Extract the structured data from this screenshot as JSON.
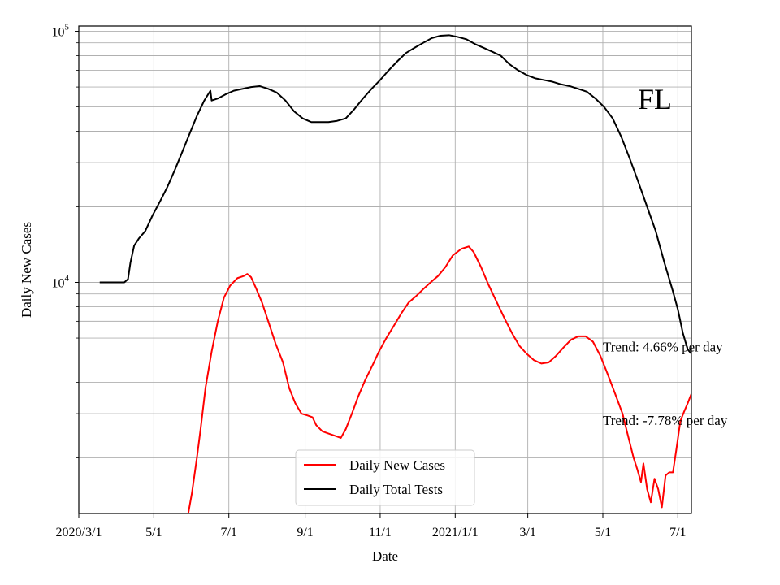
{
  "chart_data": {
    "type": "line",
    "xlabel": "Date",
    "ylabel": "Daily New Cases",
    "yscale": "log",
    "xlim": [
      "2020-03-01",
      "2021-07-12"
    ],
    "ylim": [
      1200,
      105000
    ],
    "grid": true,
    "legend_placement": "lower center",
    "panel_label": "FL",
    "x_ticks": [
      {
        "date": "2020-03-01",
        "label": "2020/3/1"
      },
      {
        "date": "2020-05-01",
        "label": "5/1"
      },
      {
        "date": "2020-07-01",
        "label": "7/1"
      },
      {
        "date": "2020-09-01",
        "label": "9/1"
      },
      {
        "date": "2020-11-01",
        "label": "11/1"
      },
      {
        "date": "2021-01-01",
        "label": "2021/1/1"
      },
      {
        "date": "2021-03-01",
        "label": "3/1"
      },
      {
        "date": "2021-05-01",
        "label": "5/1"
      },
      {
        "date": "2021-07-01",
        "label": "7/1"
      }
    ],
    "y_major_ticks": [
      {
        "value": 10000,
        "base": "10",
        "exp": "4"
      },
      {
        "value": 100000,
        "base": "10",
        "exp": "5"
      }
    ],
    "y_minor_values": [
      2000,
      3000,
      4000,
      5000,
      6000,
      7000,
      8000,
      9000,
      20000,
      30000,
      40000,
      50000,
      60000,
      70000,
      80000,
      90000
    ],
    "annotations": [
      {
        "text": "Trend: 4.66% per day",
        "date": "2021-05-01",
        "value": 5300
      },
      {
        "text": "Trend: -7.78% per day",
        "date": "2021-05-01",
        "value": 2700
      }
    ],
    "series": [
      {
        "name": "Daily New Cases",
        "color": "#ff0000",
        "points": [
          [
            "2020-05-29",
            1200
          ],
          [
            "2020-06-01",
            1450
          ],
          [
            "2020-06-05",
            2000
          ],
          [
            "2020-06-08",
            2600
          ],
          [
            "2020-06-12",
            3800
          ],
          [
            "2020-06-17",
            5300
          ],
          [
            "2020-06-22",
            7000
          ],
          [
            "2020-06-27",
            8700
          ],
          [
            "2020-07-02",
            9700
          ],
          [
            "2020-07-08",
            10400
          ],
          [
            "2020-07-13",
            10600
          ],
          [
            "2020-07-16",
            10800
          ],
          [
            "2020-07-19",
            10500
          ],
          [
            "2020-07-23",
            9500
          ],
          [
            "2020-07-28",
            8300
          ],
          [
            "2020-08-02",
            7000
          ],
          [
            "2020-08-08",
            5700
          ],
          [
            "2020-08-14",
            4800
          ],
          [
            "2020-08-19",
            3800
          ],
          [
            "2020-08-24",
            3300
          ],
          [
            "2020-08-29",
            3000
          ],
          [
            "2020-09-03",
            2950
          ],
          [
            "2020-09-07",
            2900
          ],
          [
            "2020-09-10",
            2700
          ],
          [
            "2020-09-15",
            2550
          ],
          [
            "2020-09-20",
            2500
          ],
          [
            "2020-09-25",
            2450
          ],
          [
            "2020-09-30",
            2400
          ],
          [
            "2020-10-04",
            2600
          ],
          [
            "2020-10-09",
            3000
          ],
          [
            "2020-10-14",
            3500
          ],
          [
            "2020-10-20",
            4100
          ],
          [
            "2020-10-26",
            4700
          ],
          [
            "2020-10-31",
            5300
          ],
          [
            "2020-11-06",
            6000
          ],
          [
            "2020-11-12",
            6700
          ],
          [
            "2020-11-18",
            7500
          ],
          [
            "2020-11-24",
            8300
          ],
          [
            "2020-11-30",
            8800
          ],
          [
            "2020-12-06",
            9400
          ],
          [
            "2020-12-12",
            10000
          ],
          [
            "2020-12-18",
            10600
          ],
          [
            "2020-12-24",
            11500
          ],
          [
            "2020-12-30",
            12800
          ],
          [
            "2021-01-06",
            13600
          ],
          [
            "2021-01-12",
            13900
          ],
          [
            "2021-01-16",
            13200
          ],
          [
            "2021-01-22",
            11500
          ],
          [
            "2021-01-28",
            9800
          ],
          [
            "2021-02-04",
            8300
          ],
          [
            "2021-02-10",
            7200
          ],
          [
            "2021-02-16",
            6300
          ],
          [
            "2021-02-22",
            5600
          ],
          [
            "2021-02-28",
            5200
          ],
          [
            "2021-03-06",
            4900
          ],
          [
            "2021-03-12",
            4750
          ],
          [
            "2021-03-18",
            4800
          ],
          [
            "2021-03-24",
            5100
          ],
          [
            "2021-03-30",
            5500
          ],
          [
            "2021-04-05",
            5900
          ],
          [
            "2021-04-11",
            6100
          ],
          [
            "2021-04-17",
            6100
          ],
          [
            "2021-04-23",
            5800
          ],
          [
            "2021-04-29",
            5100
          ],
          [
            "2021-05-05",
            4300
          ],
          [
            "2021-05-11",
            3600
          ],
          [
            "2021-05-17",
            3000
          ],
          [
            "2021-05-21",
            2500
          ],
          [
            "2021-05-26",
            2000
          ],
          [
            "2021-05-29",
            1800
          ],
          [
            "2021-06-01",
            1600
          ],
          [
            "2021-06-03",
            1900
          ],
          [
            "2021-06-06",
            1500
          ],
          [
            "2021-06-09",
            1330
          ],
          [
            "2021-06-12",
            1650
          ],
          [
            "2021-06-15",
            1500
          ],
          [
            "2021-06-18",
            1270
          ],
          [
            "2021-06-21",
            1700
          ],
          [
            "2021-06-24",
            1750
          ],
          [
            "2021-06-27",
            1750
          ],
          [
            "2021-06-30",
            2200
          ],
          [
            "2021-07-03",
            2800
          ],
          [
            "2021-07-06",
            3050
          ],
          [
            "2021-07-09",
            3300
          ],
          [
            "2021-07-12",
            3600
          ]
        ]
      },
      {
        "name": "Daily Total Tests",
        "color": "#000000",
        "points": [
          [
            "2020-03-18",
            10000
          ],
          [
            "2020-04-07",
            10000
          ],
          [
            "2020-04-10",
            10300
          ],
          [
            "2020-04-12",
            12000
          ],
          [
            "2020-04-15",
            14000
          ],
          [
            "2020-04-19",
            15000
          ],
          [
            "2020-04-24",
            16000
          ],
          [
            "2020-04-30",
            18500
          ],
          [
            "2020-05-06",
            21000
          ],
          [
            "2020-05-12",
            24000
          ],
          [
            "2020-05-18",
            28000
          ],
          [
            "2020-05-24",
            33000
          ],
          [
            "2020-05-30",
            39000
          ],
          [
            "2020-06-05",
            46000
          ],
          [
            "2020-06-11",
            53000
          ],
          [
            "2020-06-16",
            58000
          ],
          [
            "2020-06-17",
            53000
          ],
          [
            "2020-06-22",
            54000
          ],
          [
            "2020-06-28",
            56000
          ],
          [
            "2020-07-05",
            58000
          ],
          [
            "2020-07-12",
            59000
          ],
          [
            "2020-07-19",
            60000
          ],
          [
            "2020-07-26",
            60500
          ],
          [
            "2020-08-02",
            59000
          ],
          [
            "2020-08-09",
            57000
          ],
          [
            "2020-08-16",
            53000
          ],
          [
            "2020-08-23",
            48000
          ],
          [
            "2020-08-30",
            45000
          ],
          [
            "2020-09-06",
            43500
          ],
          [
            "2020-09-13",
            43500
          ],
          [
            "2020-09-20",
            43500
          ],
          [
            "2020-09-27",
            44000
          ],
          [
            "2020-10-04",
            45000
          ],
          [
            "2020-10-11",
            49000
          ],
          [
            "2020-10-18",
            54000
          ],
          [
            "2020-10-25",
            59000
          ],
          [
            "2020-11-01",
            64000
          ],
          [
            "2020-11-08",
            70000
          ],
          [
            "2020-11-15",
            76000
          ],
          [
            "2020-11-22",
            82000
          ],
          [
            "2020-11-29",
            86000
          ],
          [
            "2020-12-06",
            90000
          ],
          [
            "2020-12-13",
            94000
          ],
          [
            "2020-12-20",
            96000
          ],
          [
            "2020-12-27",
            96500
          ],
          [
            "2021-01-03",
            95000
          ],
          [
            "2021-01-10",
            93000
          ],
          [
            "2021-01-17",
            89000
          ],
          [
            "2021-01-24",
            86000
          ],
          [
            "2021-01-31",
            83000
          ],
          [
            "2021-02-07",
            80000
          ],
          [
            "2021-02-14",
            74000
          ],
          [
            "2021-02-21",
            70000
          ],
          [
            "2021-02-28",
            67000
          ],
          [
            "2021-03-07",
            65000
          ],
          [
            "2021-03-14",
            64000
          ],
          [
            "2021-03-21",
            63000
          ],
          [
            "2021-03-28",
            61500
          ],
          [
            "2021-04-04",
            60500
          ],
          [
            "2021-04-11",
            59000
          ],
          [
            "2021-04-18",
            57500
          ],
          [
            "2021-04-25",
            54000
          ],
          [
            "2021-05-02",
            50000
          ],
          [
            "2021-05-09",
            45000
          ],
          [
            "2021-05-16",
            38000
          ],
          [
            "2021-05-23",
            31000
          ],
          [
            "2021-05-30",
            25000
          ],
          [
            "2021-06-06",
            20000
          ],
          [
            "2021-06-13",
            16000
          ],
          [
            "2021-06-20",
            12000
          ],
          [
            "2021-06-27",
            9200
          ],
          [
            "2021-07-01",
            7800
          ],
          [
            "2021-07-05",
            6300
          ],
          [
            "2021-07-09",
            5400
          ],
          [
            "2021-07-12",
            5200
          ]
        ]
      }
    ]
  }
}
